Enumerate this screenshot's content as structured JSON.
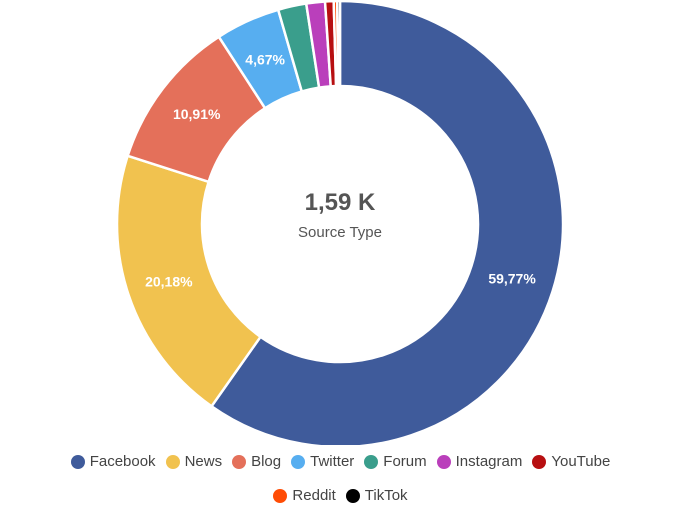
{
  "chart_data": {
    "type": "pie",
    "variant": "donut",
    "center_value": "1,59 K",
    "center_label": "Source Type",
    "categories": [
      "Facebook",
      "News",
      "Blog",
      "Twitter",
      "Forum",
      "Instagram",
      "YouTube",
      "Reddit",
      "TikTok"
    ],
    "values": [
      59.77,
      20.18,
      10.91,
      4.67,
      2.05,
      1.35,
      0.62,
      0.25,
      0.2
    ],
    "data_labels": [
      "59,77%",
      "20,18%",
      "10,91%",
      "4,67%",
      "",
      "",
      "",
      "",
      ""
    ],
    "colors": [
      "#3f5b9b",
      "#f1c24f",
      "#e4705a",
      "#57aef0",
      "#3a9e8c",
      "#ba3fbb",
      "#b70f11",
      "#ff4c05",
      "#000000"
    ],
    "legend_position": "bottom"
  }
}
